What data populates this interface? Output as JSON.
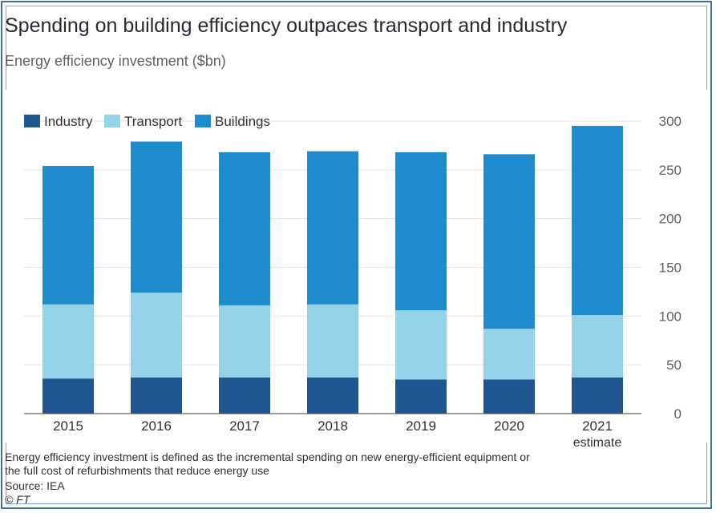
{
  "title": "Spending on building efficiency outpaces transport and industry",
  "subtitle": "Energy efficiency investment ($bn)",
  "footnote": "Energy efficiency investment is defined as the incremental spending on new energy-efficient equipment or the full cost of refurbishments that reduce energy use",
  "source": "Source: IEA",
  "credit": "© FT",
  "chart_data": {
    "type": "bar",
    "stacked": true,
    "categories": [
      "2015",
      "2016",
      "2017",
      "2018",
      "2019",
      "2020",
      "2021"
    ],
    "category_sublabels": [
      "",
      "",
      "",
      "",
      "",
      "",
      "estimate"
    ],
    "series": [
      {
        "name": "Industry",
        "color": "#1f5590",
        "values": [
          36,
          37,
          37,
          37,
          35,
          35,
          37
        ]
      },
      {
        "name": "Transport",
        "color": "#94d3e8",
        "values": [
          76,
          87,
          74,
          75,
          71,
          52,
          64
        ]
      },
      {
        "name": "Buildings",
        "color": "#1e8bcd",
        "values": [
          142,
          155,
          157,
          157,
          162,
          179,
          194
        ]
      }
    ],
    "ylim": [
      0,
      300
    ],
    "yticks": [
      0,
      50,
      100,
      150,
      200,
      250,
      300
    ],
    "y_axis_side": "right",
    "grid": true,
    "legend_position": "top-left"
  }
}
